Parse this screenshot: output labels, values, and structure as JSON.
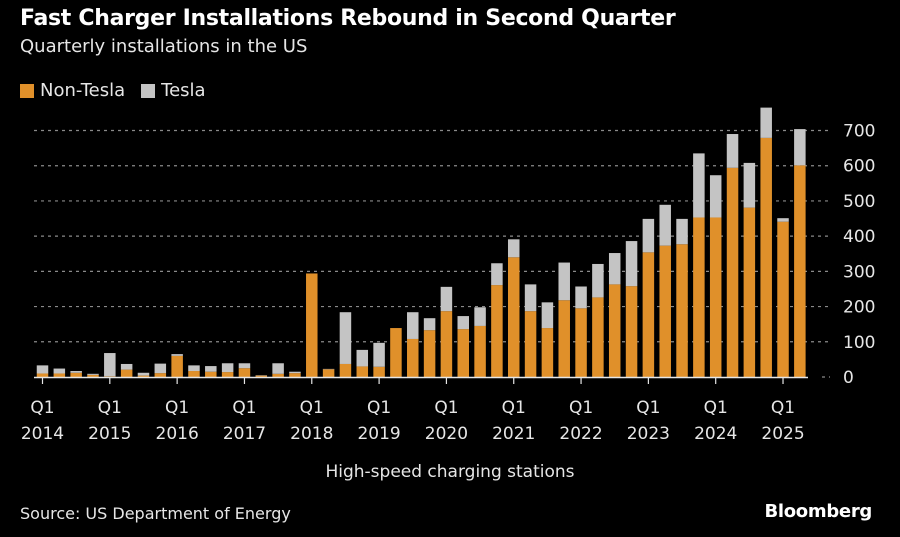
{
  "colors": {
    "non_tesla": "#E0902A",
    "tesla": "#C4C4C4",
    "background": "#000000",
    "grid": "#8a8a8a",
    "text": "#E6E6E6"
  },
  "footer": {
    "source": "Source: US Department of Energy",
    "brand": "Bloomberg"
  },
  "chart_data": {
    "type": "bar",
    "stacked": true,
    "title": "Fast Charger Installations Rebound in Second Quarter",
    "subtitle": "Quarterly installations in the US",
    "xlabel": "High-speed charging stations",
    "ylabel": "",
    "ylim": [
      0,
      700
    ],
    "yticks": [
      0,
      100,
      200,
      300,
      400,
      500,
      600,
      700
    ],
    "y_axis_side": "right",
    "grid": true,
    "legend": {
      "placement": "top-left",
      "entries": [
        "Non-Tesla",
        "Tesla"
      ]
    },
    "xtick_labels": [
      {
        "quarter_index": 0,
        "line1": "Q1",
        "line2": "2014"
      },
      {
        "quarter_index": 4,
        "line1": "Q1",
        "line2": "2015"
      },
      {
        "quarter_index": 8,
        "line1": "Q1",
        "line2": "2016"
      },
      {
        "quarter_index": 12,
        "line1": "Q1",
        "line2": "2017"
      },
      {
        "quarter_index": 16,
        "line1": "Q1",
        "line2": "2018"
      },
      {
        "quarter_index": 20,
        "line1": "Q1",
        "line2": "2019"
      },
      {
        "quarter_index": 24,
        "line1": "Q1",
        "line2": "2020"
      },
      {
        "quarter_index": 28,
        "line1": "Q1",
        "line2": "2021"
      },
      {
        "quarter_index": 32,
        "line1": "Q1",
        "line2": "2022"
      },
      {
        "quarter_index": 36,
        "line1": "Q1",
        "line2": "2023"
      },
      {
        "quarter_index": 40,
        "line1": "Q1",
        "line2": "2024"
      },
      {
        "quarter_index": 44,
        "line1": "Q1",
        "line2": "2025"
      }
    ],
    "categories": [
      "Q1 2014",
      "Q2 2014",
      "Q3 2014",
      "Q4 2014",
      "Q1 2015",
      "Q2 2015",
      "Q3 2015",
      "Q4 2015",
      "Q1 2016",
      "Q2 2016",
      "Q3 2016",
      "Q4 2016",
      "Q1 2017",
      "Q2 2017",
      "Q3 2017",
      "Q4 2017",
      "Q1 2018",
      "Q2 2018",
      "Q3 2018",
      "Q4 2018",
      "Q1 2019",
      "Q2 2019",
      "Q3 2019",
      "Q4 2019",
      "Q1 2020",
      "Q2 2020",
      "Q3 2020",
      "Q4 2020",
      "Q1 2021",
      "Q2 2021",
      "Q3 2021",
      "Q4 2021",
      "Q1 2022",
      "Q2 2022",
      "Q3 2022",
      "Q4 2022",
      "Q1 2023",
      "Q2 2023",
      "Q3 2023",
      "Q4 2023",
      "Q1 2024",
      "Q2 2024",
      "Q3 2024",
      "Q4 2024",
      "Q1 2025",
      "Q2 2025"
    ],
    "series": [
      {
        "name": "Non-Tesla",
        "values": [
          10,
          10,
          12,
          6,
          2,
          21,
          4,
          11,
          60,
          17,
          15,
          14,
          25,
          4,
          9,
          11,
          294,
          22,
          37,
          30,
          29,
          139,
          108,
          133,
          187,
          136,
          145,
          261,
          340,
          187,
          139,
          218,
          195,
          226,
          263,
          258,
          354,
          373,
          377,
          453,
          453,
          594,
          481,
          679,
          441,
          601
        ]
      },
      {
        "name": "Tesla",
        "values": [
          23,
          14,
          5,
          3,
          66,
          16,
          8,
          27,
          5,
          16,
          16,
          25,
          14,
          1,
          30,
          4,
          0,
          1,
          147,
          47,
          68,
          0,
          76,
          34,
          69,
          37,
          53,
          62,
          51,
          76,
          73,
          107,
          62,
          95,
          89,
          128,
          95,
          116,
          72,
          182,
          120,
          96,
          127,
          86,
          10,
          103
        ]
      }
    ]
  }
}
